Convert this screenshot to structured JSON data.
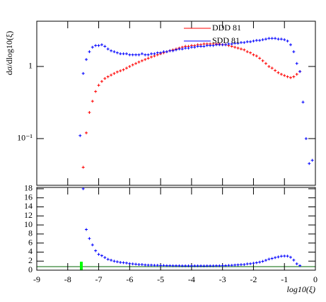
{
  "chart_data": [
    {
      "type": "scatter",
      "ylabel": "dσ/dlog10(ξ)",
      "log_y": true,
      "legend": "upper right",
      "xlim": [
        -9,
        0
      ],
      "ylim": [
        0.0225,
        4.24
      ],
      "yticks": [
        {
          "value": 0.1,
          "label": "10⁻¹"
        },
        1
      ],
      "x": [
        -7.6,
        -7.5,
        -7.4,
        -7.3,
        -7.2,
        -7.1,
        -7.0,
        -6.9,
        -6.8,
        -6.7,
        -6.6,
        -6.5,
        -6.4,
        -6.3,
        -6.2,
        -6.1,
        -6.0,
        -5.9,
        -5.8,
        -5.7,
        -5.6,
        -5.5,
        -5.4,
        -5.3,
        -5.2,
        -5.1,
        -5.0,
        -4.9,
        -4.8,
        -4.7,
        -4.6,
        -4.5,
        -4.4,
        -4.3,
        -4.2,
        -4.1,
        -4.0,
        -3.9,
        -3.8,
        -3.7,
        -3.6,
        -3.5,
        -3.4,
        -3.3,
        -3.2,
        -3.1,
        -3.0,
        -2.9,
        -2.8,
        -2.7,
        -2.6,
        -2.5,
        -2.4,
        -2.3,
        -2.2,
        -2.1,
        -2.0,
        -1.9,
        -1.8,
        -1.7,
        -1.6,
        -1.5,
        -1.4,
        -1.3,
        -1.2,
        -1.1,
        -1.0,
        -0.9,
        -0.8,
        -0.7,
        -0.6,
        -0.5,
        -0.4,
        -0.3,
        -0.2,
        -0.1
      ],
      "series": [
        {
          "name": "DDD 81",
          "color": "#ff0000",
          "values": [
            null,
            0.04,
            0.12,
            0.23,
            0.33,
            0.45,
            0.55,
            0.62,
            0.68,
            0.72,
            0.76,
            0.8,
            0.84,
            0.87,
            0.9,
            0.95,
            1.0,
            1.05,
            1.1,
            1.15,
            1.2,
            1.25,
            1.3,
            1.35,
            1.4,
            1.45,
            1.5,
            1.55,
            1.6,
            1.65,
            1.7,
            1.75,
            1.8,
            1.85,
            1.9,
            1.9,
            1.95,
            1.95,
            2.0,
            2.0,
            2.05,
            2.05,
            2.05,
            2.05,
            2.05,
            2.05,
            2.0,
            2.0,
            1.95,
            1.9,
            1.85,
            1.8,
            1.75,
            1.7,
            1.6,
            1.55,
            1.45,
            1.4,
            1.3,
            1.2,
            1.1,
            1.0,
            0.95,
            0.88,
            0.82,
            0.78,
            0.75,
            0.72,
            0.7,
            0.72,
            0.78,
            0.85,
            null,
            null,
            null,
            null
          ]
        },
        {
          "name": "SDD 81",
          "color": "#0000ff",
          "values": [
            0.11,
            0.8,
            1.25,
            1.6,
            1.85,
            1.95,
            1.95,
            2.0,
            1.9,
            1.75,
            1.65,
            1.6,
            1.55,
            1.5,
            1.5,
            1.5,
            1.45,
            1.45,
            1.45,
            1.45,
            1.5,
            1.45,
            1.45,
            1.5,
            1.5,
            1.55,
            1.55,
            1.6,
            1.6,
            1.65,
            1.65,
            1.7,
            1.75,
            1.75,
            1.8,
            1.8,
            1.85,
            1.85,
            1.9,
            1.9,
            1.9,
            1.95,
            1.95,
            1.95,
            2.0,
            2.0,
            2.0,
            2.0,
            2.05,
            2.05,
            2.1,
            2.1,
            2.15,
            2.15,
            2.2,
            2.2,
            2.25,
            2.3,
            2.3,
            2.35,
            2.4,
            2.45,
            2.45,
            2.45,
            2.4,
            2.4,
            2.35,
            2.25,
            2.0,
            1.6,
            1.1,
            0.85,
            0.32,
            0.1,
            0.045,
            0.05
          ]
        }
      ]
    },
    {
      "type": "scatter",
      "xlabel": "log10(ξ)",
      "xlim": [
        -9,
        0
      ],
      "ylim": [
        0,
        18.3
      ],
      "xticks": [
        -9,
        -8,
        -7,
        -6,
        -5,
        -4,
        -3,
        -2,
        -1,
        0
      ],
      "yticks": [
        0,
        2,
        4,
        6,
        8,
        10,
        12,
        14,
        16,
        18
      ],
      "x": [
        -7.6,
        -7.5,
        -7.4,
        -7.3,
        -7.2,
        -7.1,
        -7.0,
        -6.9,
        -6.8,
        -6.7,
        -6.6,
        -6.5,
        -6.4,
        -6.3,
        -6.2,
        -6.1,
        -6.0,
        -5.9,
        -5.8,
        -5.7,
        -5.6,
        -5.5,
        -5.4,
        -5.3,
        -5.2,
        -5.1,
        -5.0,
        -4.9,
        -4.8,
        -4.7,
        -4.6,
        -4.5,
        -4.4,
        -4.3,
        -4.2,
        -4.1,
        -4.0,
        -3.9,
        -3.8,
        -3.7,
        -3.6,
        -3.5,
        -3.4,
        -3.3,
        -3.2,
        -3.1,
        -3.0,
        -2.9,
        -2.8,
        -2.7,
        -2.6,
        -2.5,
        -2.4,
        -2.3,
        -2.2,
        -2.1,
        -2.0,
        -1.9,
        -1.8,
        -1.7,
        -1.6,
        -1.5,
        -1.4,
        -1.3,
        -1.2,
        -1.1,
        -1.0,
        -0.9,
        -0.8,
        -0.7,
        -0.6,
        -0.5,
        -0.4,
        -0.3,
        -0.2,
        -0.1
      ],
      "series": [
        {
          "color": "#0000ff",
          "values": [
            null,
            18,
            9,
            7,
            5.6,
            4.3,
            3.5,
            3.2,
            2.8,
            2.4,
            2.2,
            2.0,
            1.85,
            1.72,
            1.67,
            1.58,
            1.45,
            1.38,
            1.32,
            1.26,
            1.25,
            1.16,
            1.12,
            1.11,
            1.07,
            1.07,
            1.03,
            1.03,
            1.0,
            1.0,
            0.97,
            0.97,
            0.97,
            0.95,
            0.95,
            0.95,
            0.95,
            0.95,
            0.95,
            0.95,
            0.93,
            0.95,
            0.95,
            0.95,
            0.98,
            0.98,
            1.0,
            1.0,
            1.05,
            1.08,
            1.14,
            1.17,
            1.23,
            1.26,
            1.38,
            1.42,
            1.55,
            1.64,
            1.77,
            1.96,
            2.18,
            2.45,
            2.58,
            2.78,
            2.93,
            3.08,
            3.13,
            3.1,
            2.86,
            2.22,
            1.41,
            1.0,
            null,
            null,
            null,
            null
          ]
        }
      ]
    }
  ]
}
